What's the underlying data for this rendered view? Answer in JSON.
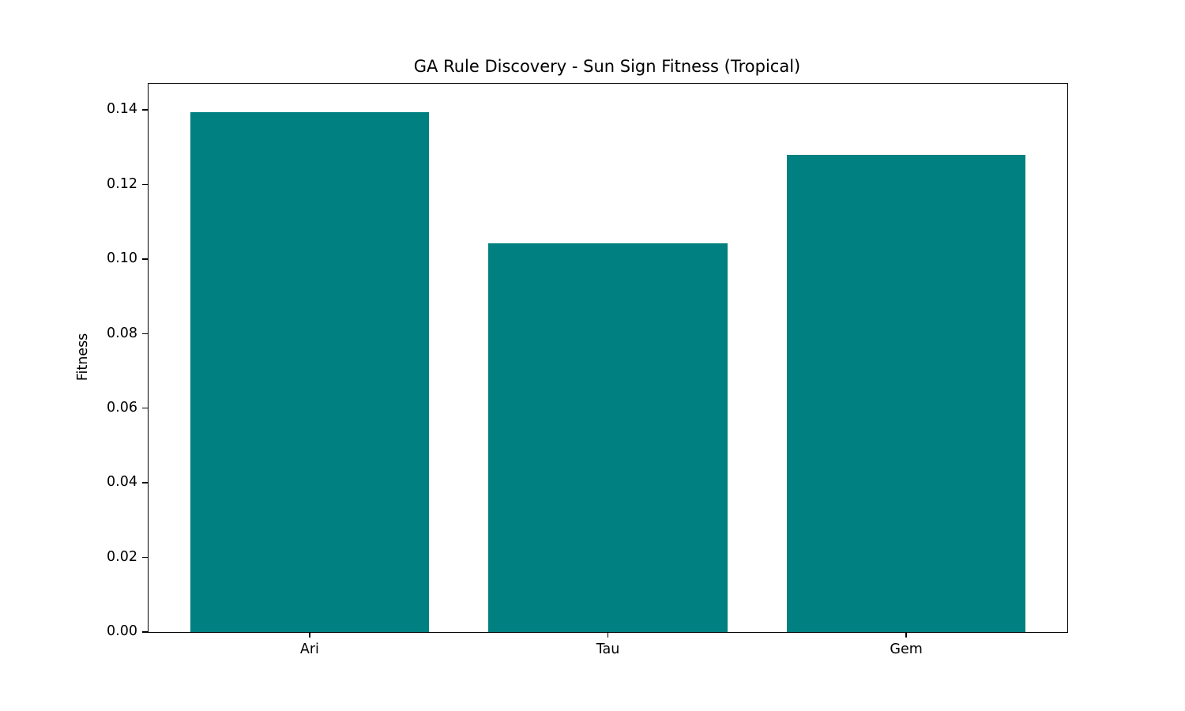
{
  "chart_data": {
    "type": "bar",
    "title": "GA Rule Discovery - Sun Sign Fitness (Tropical)",
    "xlabel": "",
    "ylabel": "Fitness",
    "categories": [
      "Ari",
      "Tau",
      "Gem"
    ],
    "values": [
      0.1394,
      0.1043,
      0.1279
    ],
    "ylim": [
      0,
      0.147
    ],
    "yticks": [
      0.0,
      0.02,
      0.04,
      0.06,
      0.08,
      0.1,
      0.12,
      0.14
    ],
    "ytick_labels": [
      "0.00",
      "0.02",
      "0.04",
      "0.06",
      "0.08",
      "0.10",
      "0.12",
      "0.14"
    ],
    "bar_width_fraction": 0.8,
    "bar_color": "#008080",
    "grid": false,
    "legend": "none",
    "background_color": "#ffffff",
    "axis_color": "#000000",
    "text_color": "#000000"
  }
}
